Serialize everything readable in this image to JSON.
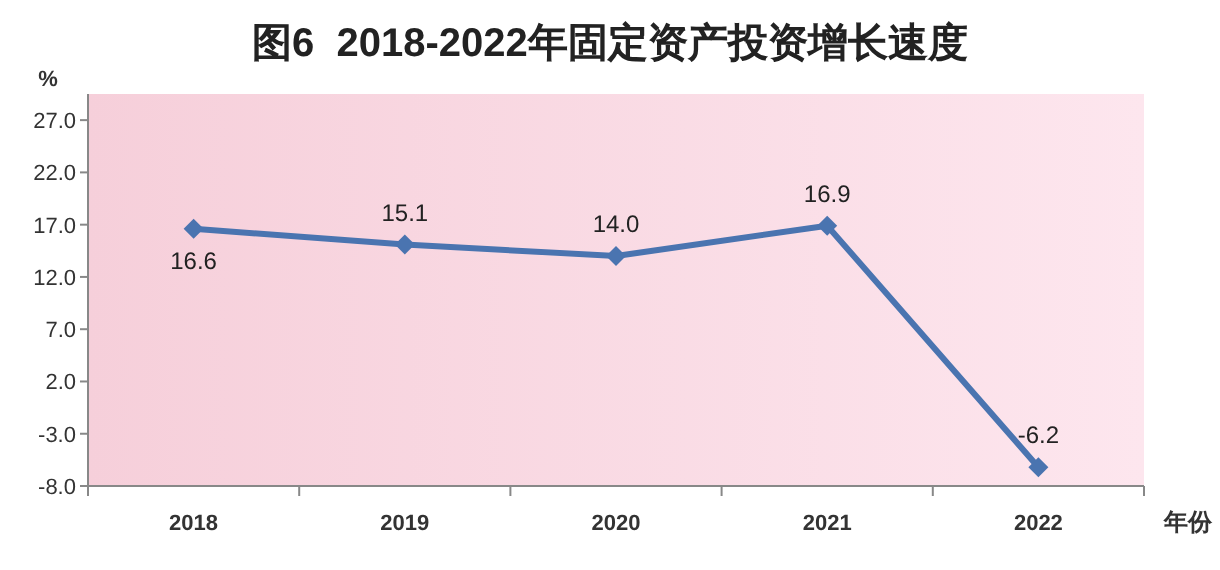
{
  "chart_data": {
    "type": "line",
    "title": "图6  2018-2022年固定资产投资增长速度",
    "ylabel": "%",
    "xlabel": "年份",
    "categories": [
      "2018",
      "2019",
      "2020",
      "2021",
      "2022"
    ],
    "series": [
      {
        "color": "#4a74b0",
        "values": [
          16.6,
          15.1,
          14.0,
          16.9,
          -6.2
        ],
        "value_labels": [
          "16.6",
          "15.1",
          "14.0",
          "16.9",
          "-6.2"
        ]
      }
    ],
    "ylim": [
      -8,
      29.5
    ],
    "yticks": [
      {
        "value": -8,
        "label": "-8.0"
      },
      {
        "value": -3,
        "label": "-3.0"
      },
      {
        "value": 2,
        "label": "2.0"
      },
      {
        "value": 7,
        "label": "7.0"
      },
      {
        "value": 12,
        "label": "12.0"
      },
      {
        "value": 17,
        "label": "17.0"
      },
      {
        "value": 22,
        "label": "22.0"
      },
      {
        "value": 27,
        "label": "27.0"
      }
    ],
    "marker": "diamond"
  }
}
